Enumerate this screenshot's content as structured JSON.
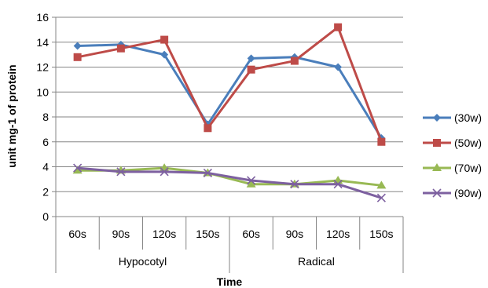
{
  "chart_data": {
    "type": "line",
    "xlabel": "Time",
    "ylabel": "unit mg-1 of protein",
    "ylim": [
      0,
      16
    ],
    "yticks": [
      0,
      2,
      4,
      6,
      8,
      10,
      12,
      14,
      16
    ],
    "grid": "horizontal",
    "legend_position": "right",
    "categories": [
      "60s",
      "90s",
      "120s",
      "150s",
      "60s",
      "90s",
      "120s",
      "150s"
    ],
    "groups": [
      {
        "label": "Hypocotyl",
        "span": 4
      },
      {
        "label": "Radical",
        "span": 4
      }
    ],
    "series": [
      {
        "name": "(30w)",
        "color": "#4a7ebb",
        "marker": "diamond",
        "values": [
          13.7,
          13.8,
          13.0,
          7.4,
          12.7,
          12.8,
          12.0,
          6.3
        ]
      },
      {
        "name": "(50w)",
        "color": "#be4b48",
        "marker": "square",
        "values": [
          12.8,
          13.5,
          14.2,
          7.1,
          11.8,
          12.5,
          15.2,
          6.0
        ]
      },
      {
        "name": "(70w)",
        "color": "#98b954",
        "marker": "triangle",
        "values": [
          3.7,
          3.7,
          3.9,
          3.5,
          2.6,
          2.6,
          2.9,
          2.5
        ]
      },
      {
        "name": "(90w)",
        "color": "#7d60a0",
        "marker": "x",
        "values": [
          3.9,
          3.6,
          3.6,
          3.5,
          2.9,
          2.6,
          2.6,
          1.5
        ]
      }
    ]
  }
}
